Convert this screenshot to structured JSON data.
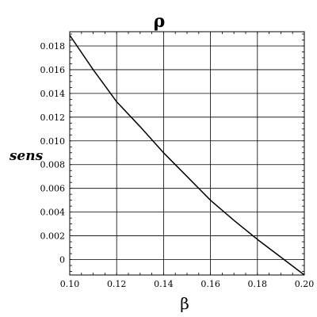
{
  "chart_data": {
    "type": "line",
    "title": "ρ",
    "xlabel": "β",
    "ylabel": "sens",
    "xlim": [
      0.1,
      0.2
    ],
    "ylim": [
      -0.0013,
      0.0192
    ],
    "grid": true,
    "x_ticks": [
      0.1,
      0.12,
      0.14,
      0.16,
      0.18,
      0.2
    ],
    "x_tick_labels": [
      "0.10",
      "0.12",
      "0.14",
      "0.16",
      "0.18",
      "0.20"
    ],
    "y_ticks": [
      0,
      0.002,
      0.004,
      0.006,
      0.008,
      0.01,
      0.012,
      0.014,
      0.016,
      0.018
    ],
    "y_tick_labels": [
      "0",
      "0.002",
      "0.004",
      "0.006",
      "0.008",
      "0.010",
      "0.012",
      "0.014",
      "0.016",
      "0.018"
    ],
    "series": [
      {
        "color": "#000000",
        "x": [
          0.1,
          0.11,
          0.12,
          0.13,
          0.14,
          0.15,
          0.16,
          0.17,
          0.18,
          0.19,
          0.2
        ],
        "y": [
          0.0189,
          0.016,
          0.0133,
          0.0112,
          0.009,
          0.007,
          0.005,
          0.0033,
          0.0017,
          0.0002,
          -0.0013
        ]
      }
    ]
  }
}
